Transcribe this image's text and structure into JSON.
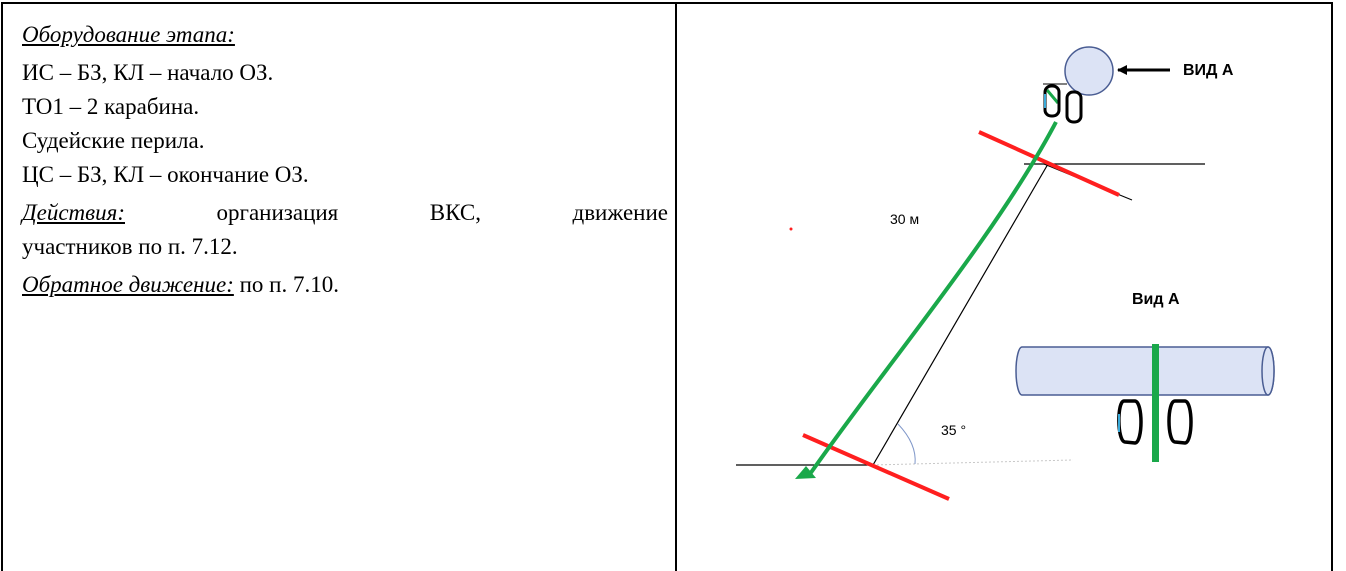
{
  "left_column": {
    "equipment_heading": "Оборудование этапа:",
    "lines": [
      "ИС – БЗ, КЛ – начало ОЗ.",
      "ТО1 – 2 карабина.",
      "Судейские перила.",
      "ЦС – БЗ, КЛ – окончание ОЗ."
    ],
    "actions_heading": "Действия:",
    "actions_words": [
      "организация",
      "ВКС,",
      "движение"
    ],
    "actions_cont": "участников по п. 7.12.",
    "return_heading": "Обратное движение:",
    "return_text": " по п. 7.10."
  },
  "diagram": {
    "view_label": "ВИД А",
    "length_label": "30 м",
    "view_title": "Вид А",
    "angle_label": "35 °",
    "colors": {
      "rope": "#1aa84a",
      "zone_line": "#ff1f1f",
      "block": "#dce3f5",
      "block_stroke": "#4a5d93"
    }
  }
}
